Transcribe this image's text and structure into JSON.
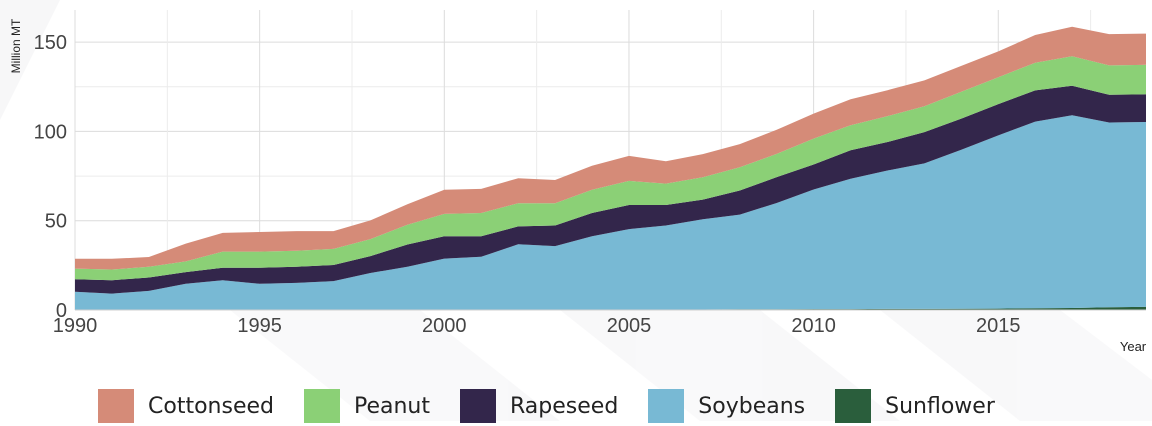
{
  "chart_data": {
    "type": "area",
    "stacked": true,
    "ylabel": "Million MT",
    "xlabel": "Year",
    "xlim": [
      1990,
      2019
    ],
    "ylim": [
      0,
      168
    ],
    "x_ticks": [
      1990,
      1995,
      2000,
      2005,
      2010,
      2015
    ],
    "y_ticks": [
      0,
      50,
      100,
      150
    ],
    "grid": true,
    "legend_position": "bottom",
    "x": [
      1990,
      1991,
      1992,
      1993,
      1994,
      1995,
      1996,
      1997,
      1998,
      1999,
      2000,
      2001,
      2002,
      2003,
      2004,
      2005,
      2006,
      2007,
      2008,
      2009,
      2010,
      2011,
      2012,
      2013,
      2014,
      2015,
      2016,
      2017,
      2018,
      2019
    ],
    "series": [
      {
        "name": "Sunflower",
        "color": "#2a5e3c",
        "values": [
          0.2,
          0.2,
          0.2,
          0.2,
          0.2,
          0.2,
          0.2,
          0.2,
          0.2,
          0.2,
          0.3,
          0.3,
          0.3,
          0.3,
          0.3,
          0.3,
          0.3,
          0.3,
          0.4,
          0.4,
          0.5,
          0.5,
          0.6,
          0.6,
          0.7,
          0.8,
          1.0,
          1.1,
          1.5,
          1.8
        ]
      },
      {
        "name": "Soybeans",
        "color": "#78b9d4",
        "values": [
          10,
          9,
          10.5,
          14.5,
          16.5,
          14.5,
          15,
          16,
          20.5,
          24,
          28.5,
          29.5,
          36.5,
          35.5,
          41,
          45,
          47,
          50.5,
          53,
          59.5,
          67,
          73,
          77.5,
          81.5,
          89,
          97,
          104.5,
          108,
          103.5,
          103.5
        ]
      },
      {
        "name": "Rapeseed",
        "color": "#33264b",
        "values": [
          7,
          7.5,
          7.5,
          6.5,
          7,
          9,
          9,
          9,
          9.5,
          12.5,
          12.5,
          11.5,
          10,
          11.5,
          13,
          13.5,
          11.5,
          11,
          13.5,
          14.5,
          14,
          16,
          16,
          17.5,
          17.5,
          17.5,
          17.5,
          16.5,
          15.5,
          15.5
        ]
      },
      {
        "name": "Peanut",
        "color": "#8bd076",
        "values": [
          6,
          6,
          6,
          6,
          9,
          9,
          9,
          9,
          9.5,
          11,
          12.5,
          13,
          13,
          12.5,
          13,
          13.5,
          12,
          12.5,
          13,
          13,
          14.5,
          14,
          14.5,
          14.5,
          15,
          15,
          15.5,
          16.5,
          16.5,
          16.5
        ]
      },
      {
        "name": "Cottonseed",
        "color": "#d58b78",
        "values": [
          5.5,
          6,
          5.5,
          10,
          10.5,
          11,
          11,
          10,
          10.5,
          11.5,
          13.5,
          13.5,
          14,
          13,
          13.5,
          14,
          12.5,
          13,
          13,
          13.5,
          14,
          14.5,
          14.5,
          14.5,
          14.5,
          14.5,
          15.5,
          16.5,
          17.5,
          17.5
        ]
      }
    ]
  },
  "legend": {
    "items": [
      {
        "label": "Cottonseed",
        "color": "#d58b78"
      },
      {
        "label": "Peanut",
        "color": "#8bd076"
      },
      {
        "label": "Rapeseed",
        "color": "#33264b"
      },
      {
        "label": "Soybeans",
        "color": "#78b9d4"
      },
      {
        "label": "Sunflower",
        "color": "#2a5e3c"
      }
    ]
  }
}
